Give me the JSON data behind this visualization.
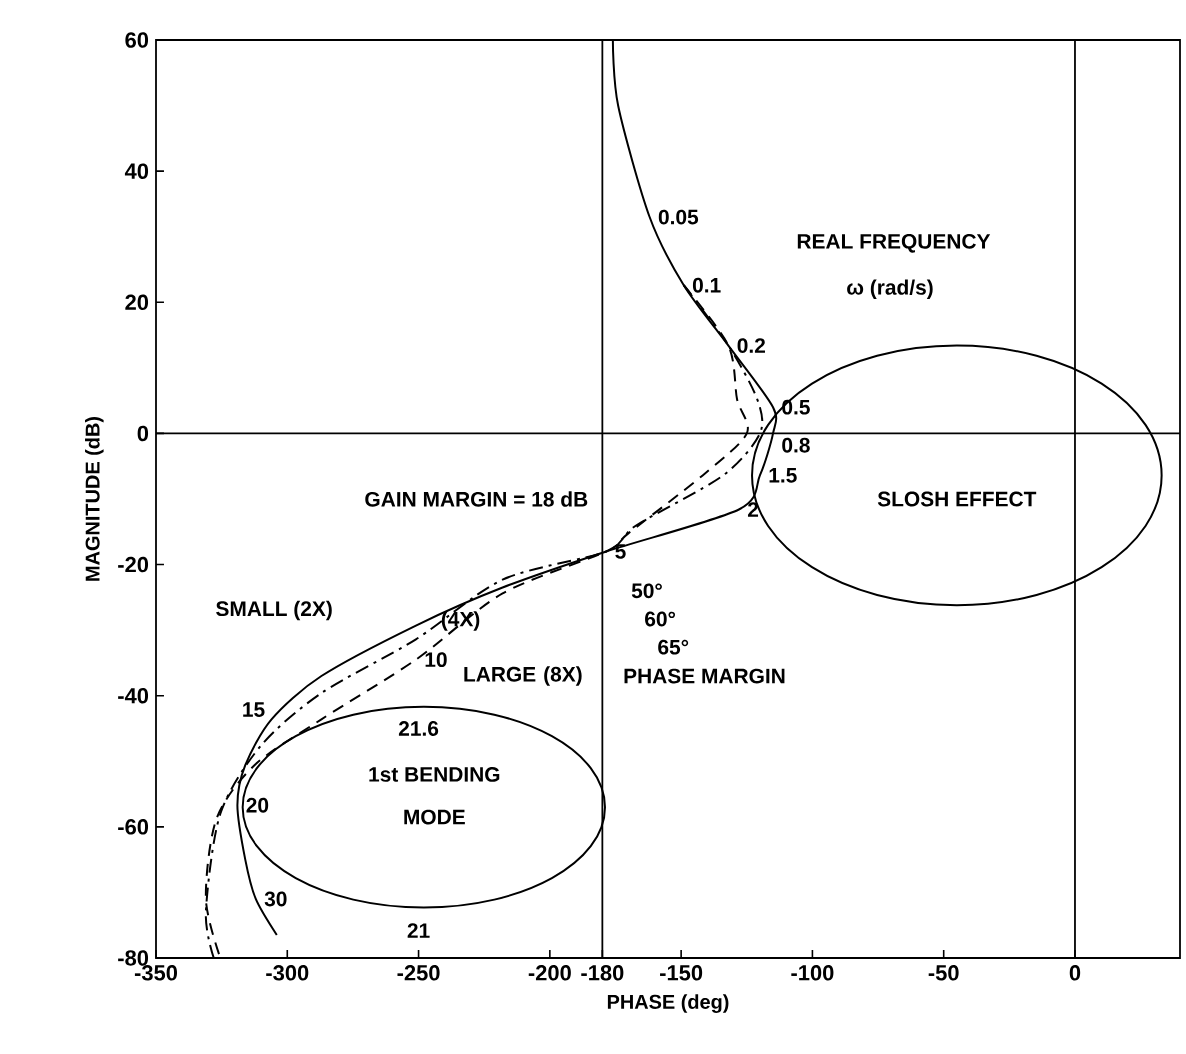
{
  "chart_data": {
    "type": "line",
    "xlabel": "PHASE (deg)",
    "ylabel": "MAGNITUDE (dB)",
    "xlim": [
      -350,
      40
    ],
    "ylim": [
      -80,
      60
    ],
    "xticks": [
      -350,
      -300,
      -250,
      -200,
      -180,
      -150,
      -100,
      -50,
      0
    ],
    "yticks": [
      -80,
      -60,
      -40,
      -20,
      0,
      20,
      40,
      60
    ],
    "grid": false,
    "legend": false,
    "marker": "none",
    "ref_lines": [
      {
        "axis": "x",
        "value": -180
      },
      {
        "axis": "x",
        "value": 0
      },
      {
        "axis": "y",
        "value": 0
      }
    ],
    "series": [
      {
        "name": "SMALL (2X)",
        "color": "#000000",
        "line_style": "solid",
        "x": [
          -176,
          -174,
          -162,
          -149,
          -132,
          -115,
          -115,
          -120,
          -128,
          -178.5,
          -218,
          -251,
          -287,
          -306,
          -316,
          -319,
          -316,
          -312,
          -304
        ],
        "values": [
          60,
          50,
          33,
          22.6,
          13.4,
          4,
          0,
          -6.4,
          -11.6,
          -18,
          -23.5,
          -29.3,
          -37,
          -43.6,
          -50.6,
          -56.7,
          -65,
          -71,
          -76.5
        ]
      },
      {
        "name": "(4X)",
        "color": "#000000",
        "line_style": "dashdot",
        "x": [
          -149,
          -132,
          -121,
          -120,
          -134,
          -167,
          -178.5,
          -218,
          -251,
          -287,
          -310,
          -325.5,
          -331,
          -328
        ],
        "values": [
          22.6,
          13.4,
          5.2,
          0,
          -6.4,
          -14,
          -18,
          -22.3,
          -31.4,
          -39.6,
          -47.6,
          -58,
          -73,
          -80
        ]
      },
      {
        "name": "LARGE (8X)",
        "color": "#000000",
        "line_style": "dashed",
        "x": [
          -149,
          -132,
          -128.7,
          -125,
          -141.8,
          -170,
          -178.5,
          -218,
          -251,
          -287,
          -312.5,
          -327,
          -331,
          -325.5
        ],
        "values": [
          22.6,
          13.4,
          5.2,
          0,
          -6.4,
          -15.2,
          -18,
          -24.4,
          -34.5,
          -43.6,
          -50.6,
          -58.8,
          -71,
          -80
        ]
      }
    ],
    "annotations": [
      {
        "text": "0.05",
        "x": -162,
        "y": 33
      },
      {
        "text": "0.1",
        "x": -149,
        "y": 22.6
      },
      {
        "text": "0.2",
        "x": -132,
        "y": 13.4
      },
      {
        "text": "0.5",
        "x": -115,
        "y": 4
      },
      {
        "text": "0.8",
        "x": -115,
        "y": 0
      },
      {
        "text": "1.5",
        "x": -120,
        "y": -6.4
      },
      {
        "text": "2",
        "x": -128,
        "y": -11.6
      },
      {
        "text": "5",
        "x": -178.5,
        "y": -18
      },
      {
        "text": "10",
        "x": -251,
        "y": -34.5
      },
      {
        "text": "15",
        "x": -306,
        "y": -43.6
      },
      {
        "text": "20",
        "x": -319,
        "y": -56.7
      },
      {
        "text": "30",
        "x": -312,
        "y": -71
      },
      "21.6",
      "21",
      "50°",
      "60°",
      "65°",
      "GAIN MARGIN = 18 dB",
      "REAL FREQUENCY",
      "ω (rad/s)",
      "PHASE MARGIN",
      "1st BENDING",
      "MODE",
      "SLOSH EFFECT"
    ]
  }
}
